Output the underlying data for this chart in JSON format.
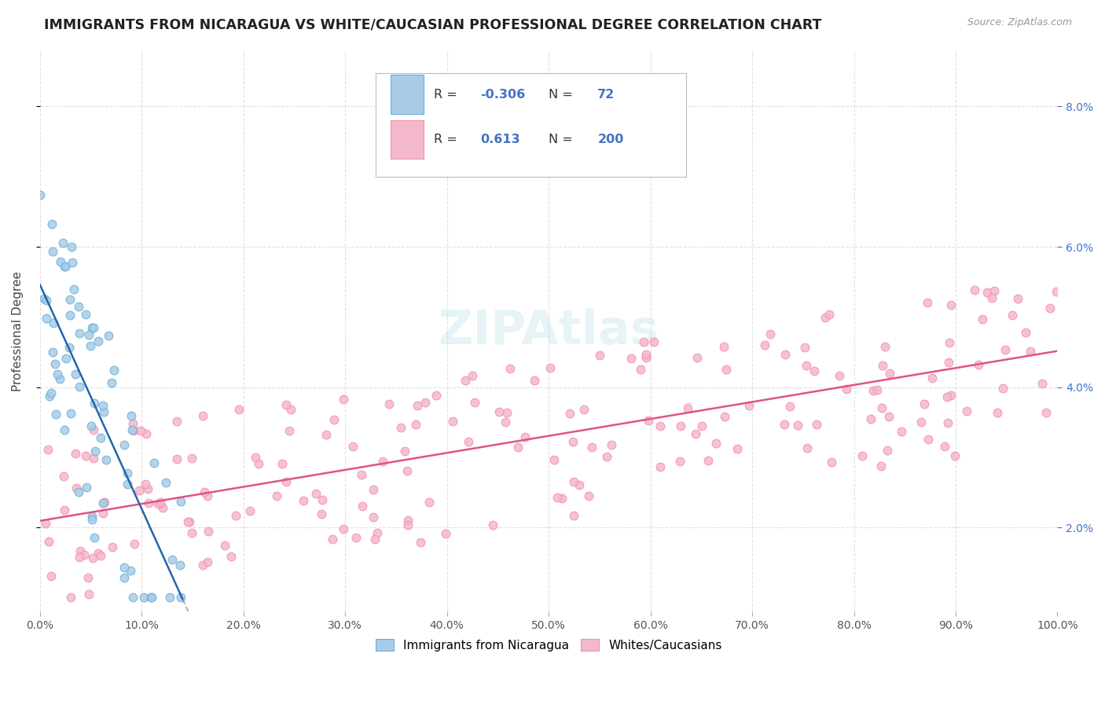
{
  "title": "IMMIGRANTS FROM NICARAGUA VS WHITE/CAUCASIAN PROFESSIONAL DEGREE CORRELATION CHART",
  "source": "Source: ZipAtlas.com",
  "ylabel": "Professional Degree",
  "ylabel_ticks": [
    "2.0%",
    "4.0%",
    "6.0%",
    "8.0%"
  ],
  "ylabel_values": [
    0.02,
    0.04,
    0.06,
    0.08
  ],
  "xlim": [
    0.0,
    1.0
  ],
  "ylim": [
    0.008,
    0.088
  ],
  "legend_blue_r": "-0.306",
  "legend_blue_n": "72",
  "legend_pink_r": "0.613",
  "legend_pink_n": "200",
  "legend_label_blue": "Immigrants from Nicaragua",
  "legend_label_pink": "Whites/Caucasians",
  "blue_color": "#a8cce8",
  "pink_color": "#f4b8cc",
  "blue_edge_color": "#6baed6",
  "pink_edge_color": "#f48fb1",
  "blue_line_color": "#2166ac",
  "pink_line_color": "#e05580",
  "background_color": "#ffffff",
  "grid_color": "#dddddd"
}
